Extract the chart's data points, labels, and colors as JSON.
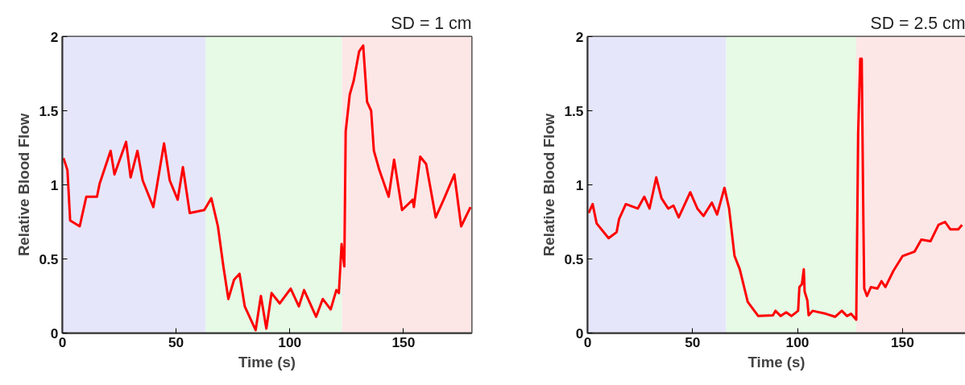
{
  "chart_data": [
    {
      "type": "line",
      "title": "SD = 1 cm",
      "xlabel": "Time (s)",
      "ylabel": "Relative Blood Flow",
      "xlim": [
        0,
        180
      ],
      "ylim": [
        0,
        2
      ],
      "xticks": [
        0,
        50,
        100,
        150
      ],
      "yticks": [
        0,
        0.5,
        1,
        1.5,
        2
      ],
      "grid": false,
      "bands": [
        {
          "axis": "x",
          "from": 0,
          "to": 63,
          "color": "#e6e6fa"
        },
        {
          "axis": "x",
          "from": 63,
          "to": 123,
          "color": "#e6fae6"
        },
        {
          "axis": "x",
          "from": 123,
          "to": 180,
          "color": "#fde6e6"
        }
      ],
      "series": [
        {
          "color": "#ff0000",
          "x": [
            0.5,
            2.2,
            3.4,
            7.6,
            10.5,
            15.2,
            16.4,
            21.2,
            22.9,
            28,
            30,
            33,
            35.3,
            40,
            44.7,
            47.2,
            50.7,
            53,
            56,
            62.4,
            65.5,
            68.4,
            70.8,
            73,
            75.5,
            77.9,
            80.2,
            85,
            87.3,
            89.7,
            92,
            95.6,
            100.4,
            104,
            106.3,
            111.6,
            114.5,
            118,
            120.5,
            121.6,
            122.8,
            124,
            124.6,
            126.4,
            128.1,
            130.5,
            132.3,
            134,
            135.8,
            137,
            139.4,
            143.5,
            145.9,
            149.4,
            154.1,
            154.6,
            157.4,
            160,
            164.2,
            167.7,
            172.4,
            175.4,
            179.5
          ],
          "values": [
            1.18,
            1.1,
            0.76,
            0.72,
            0.92,
            0.92,
            1.01,
            1.23,
            1.07,
            1.29,
            1.05,
            1.23,
            1.03,
            0.85,
            1.28,
            1.03,
            0.9,
            1.12,
            0.81,
            0.83,
            0.91,
            0.72,
            0.45,
            0.23,
            0.36,
            0.4,
            0.18,
            0.02,
            0.25,
            0.03,
            0.27,
            0.2,
            0.3,
            0.18,
            0.29,
            0.11,
            0.23,
            0.16,
            0.29,
            0.27,
            0.6,
            0.45,
            1.36,
            1.61,
            1.7,
            1.9,
            1.94,
            1.56,
            1.5,
            1.23,
            1.1,
            0.92,
            1.17,
            0.83,
            0.9,
            0.85,
            1.19,
            1.14,
            0.78,
            0.9,
            1.07,
            0.72,
            0.85
          ]
        }
      ]
    },
    {
      "type": "line",
      "title": "SD = 2.5 cm",
      "xlabel": "Time (s)",
      "ylabel": "Relative Blood Flow",
      "xlim": [
        0,
        180
      ],
      "ylim": [
        0,
        2
      ],
      "xticks": [
        0,
        50,
        100,
        150
      ],
      "yticks": [
        0,
        0.5,
        1,
        1.5,
        2
      ],
      "grid": false,
      "bands": [
        {
          "axis": "x",
          "from": 0,
          "to": 66,
          "color": "#e6e6fa"
        },
        {
          "axis": "x",
          "from": 66,
          "to": 128,
          "color": "#e6fae6"
        },
        {
          "axis": "x",
          "from": 128,
          "to": 180,
          "color": "#fde6e6"
        }
      ],
      "series": [
        {
          "color": "#ff0000",
          "x": [
            0.5,
            2.4,
            4.3,
            10,
            13.8,
            15,
            18.2,
            23.9,
            27,
            29.5,
            32.7,
            35.2,
            38.4,
            40.9,
            43.4,
            48.9,
            52.3,
            55.2,
            59.2,
            61.7,
            65.2,
            67.4,
            70,
            72.5,
            76.3,
            81.3,
            88.3,
            89.5,
            92,
            94.6,
            97.1,
            100.3,
            100.9,
            102.1,
            103,
            103.4,
            104.7,
            105.3,
            107.2,
            113.5,
            117.9,
            121.1,
            123.6,
            125.5,
            128,
            128.9,
            129.9,
            130.6,
            131.4,
            131.8,
            133.1,
            135,
            138.1,
            140,
            141.9,
            145.7,
            150.1,
            155.8,
            159,
            163.4,
            167.2,
            170.3,
            172.8,
            176.6,
            178.4
          ],
          "values": [
            0.81,
            0.87,
            0.74,
            0.64,
            0.68,
            0.77,
            0.87,
            0.84,
            0.92,
            0.84,
            1.05,
            0.91,
            0.84,
            0.86,
            0.78,
            0.95,
            0.84,
            0.79,
            0.88,
            0.8,
            0.98,
            0.84,
            0.52,
            0.43,
            0.21,
            0.115,
            0.12,
            0.15,
            0.115,
            0.14,
            0.115,
            0.15,
            0.31,
            0.33,
            0.43,
            0.28,
            0.22,
            0.12,
            0.15,
            0.13,
            0.11,
            0.15,
            0.115,
            0.13,
            0.09,
            1.35,
            1.85,
            1.85,
            0.74,
            0.3,
            0.25,
            0.31,
            0.3,
            0.35,
            0.31,
            0.42,
            0.52,
            0.55,
            0.63,
            0.62,
            0.73,
            0.75,
            0.7,
            0.7,
            0.73
          ]
        }
      ]
    }
  ]
}
